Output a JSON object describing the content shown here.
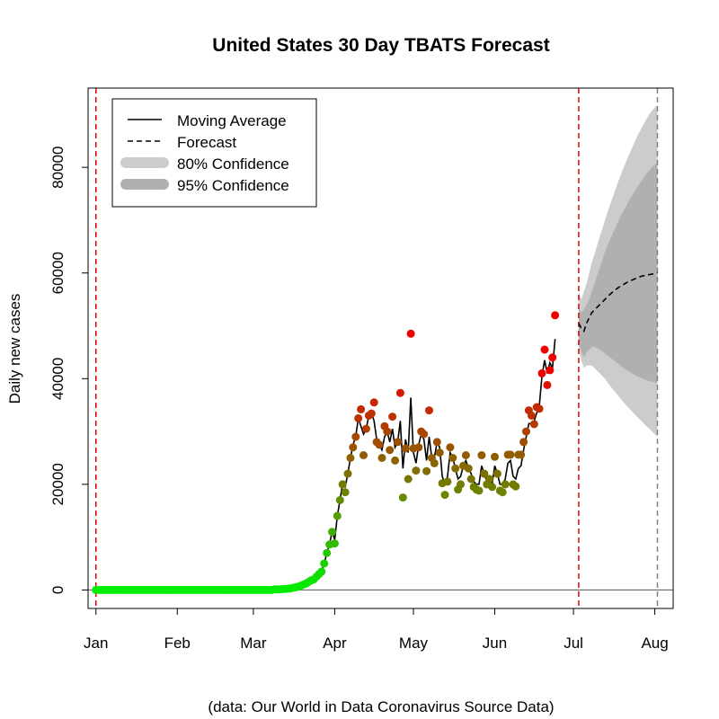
{
  "chart_data": {
    "type": "scatter",
    "title": "United States 30 Day TBATS Forecast",
    "ylabel": "Daily new cases",
    "xlabel": "",
    "caption": "(data: Our World in Data Coronavirus Source Data)",
    "ylim": [
      -3500,
      95000
    ],
    "xlim": [
      "2019-12-29",
      "2020-08-08"
    ],
    "y_ticks": [
      0,
      20000,
      40000,
      60000,
      80000
    ],
    "x_ticks": [
      {
        "date": "2020-01-01",
        "label": "Jan"
      },
      {
        "date": "2020-02-01",
        "label": "Feb"
      },
      {
        "date": "2020-03-01",
        "label": "Mar"
      },
      {
        "date": "2020-04-01",
        "label": "Apr"
      },
      {
        "date": "2020-05-01",
        "label": "May"
      },
      {
        "date": "2020-06-01",
        "label": "Jun"
      },
      {
        "date": "2020-07-01",
        "label": "Jul"
      },
      {
        "date": "2020-08-01",
        "label": "Aug"
      }
    ],
    "legend": {
      "placement": "top-left",
      "entries": [
        {
          "label": "Moving Average",
          "style": "solid-line"
        },
        {
          "label": "Forecast",
          "style": "dashed-line"
        },
        {
          "label": "80% Confidence",
          "style": "band",
          "color": "#cccccc"
        },
        {
          "label": "95% Confidence",
          "style": "band",
          "color": "#b0b0b0"
        }
      ]
    },
    "vertical_lines": [
      {
        "date": "2020-01-01",
        "color": "#e00000",
        "style": "dashed"
      },
      {
        "date": "2020-07-03",
        "color": "#e00000",
        "style": "dashed"
      },
      {
        "date": "2020-08-02",
        "color": "#808080",
        "style": "dashed"
      }
    ],
    "zero_line": true,
    "point_color_scale": [
      "#00ee00",
      "#ee0000"
    ],
    "daily_cases": {
      "start_date": "2020-01-01",
      "values": [
        0,
        0,
        0,
        0,
        0,
        0,
        0,
        0,
        0,
        0,
        0,
        0,
        0,
        0,
        0,
        0,
        0,
        0,
        0,
        0,
        0,
        0,
        0,
        0,
        0,
        0,
        0,
        0,
        0,
        0,
        0,
        0,
        0,
        0,
        0,
        0,
        0,
        0,
        0,
        0,
        0,
        0,
        0,
        0,
        0,
        0,
        0,
        0,
        0,
        0,
        0,
        0,
        0,
        0,
        0,
        0,
        0,
        0,
        0,
        0,
        0,
        0,
        0,
        0,
        0,
        0,
        0,
        0,
        100,
        100,
        100,
        150,
        200,
        250,
        300,
        400,
        500,
        600,
        800,
        1000,
        1200,
        1500,
        1800,
        2000,
        2500,
        3000,
        3500,
        5000,
        7000,
        8600,
        11000,
        8800,
        14000,
        17000,
        20000,
        18500,
        22000,
        25000,
        27000,
        29000,
        32500,
        34200,
        25500,
        30500,
        33000,
        33400,
        35500,
        28000,
        27500,
        25000,
        31000,
        30000,
        26500,
        32800,
        24500,
        28000,
        37300,
        17500,
        26800,
        21000,
        48500,
        26800,
        22600,
        27000,
        30000,
        29500,
        22500,
        34000,
        25000,
        24000,
        28000,
        26000,
        20200,
        18000,
        20500,
        27000,
        25000,
        23000,
        19000,
        20000,
        23500,
        25500,
        23000,
        21000,
        19500,
        19000,
        18800,
        25500,
        22000,
        20000,
        21000,
        19500,
        25200,
        22000,
        18800,
        18500,
        20000,
        25600,
        25600,
        20000,
        19600,
        25600,
        25600,
        28000,
        30000,
        34000,
        33000,
        31400,
        34600,
        34300,
        41000,
        45500,
        38800,
        41600,
        44000,
        52000
      ]
    },
    "moving_average": {
      "start_date": "2020-01-01",
      "values": [
        0,
        0,
        0,
        0,
        0,
        0,
        0,
        0,
        0,
        0,
        0,
        0,
        0,
        0,
        0,
        0,
        0,
        0,
        0,
        0,
        0,
        0,
        0,
        0,
        0,
        0,
        0,
        0,
        0,
        0,
        0,
        0,
        0,
        0,
        0,
        0,
        0,
        0,
        0,
        0,
        0,
        0,
        0,
        0,
        0,
        0,
        0,
        0,
        0,
        0,
        0,
        0,
        0,
        0,
        0,
        0,
        0,
        0,
        0,
        0,
        0,
        0,
        0,
        0,
        0,
        0,
        0,
        0,
        50,
        100,
        100,
        150,
        200,
        250,
        300,
        400,
        500,
        600,
        800,
        1000,
        1200,
        1500,
        1800,
        2000,
        2500,
        3000,
        3500,
        5000,
        7000,
        8600,
        11000,
        9500,
        14000,
        17000,
        20000,
        19500,
        22000,
        25000,
        27500,
        29000,
        32500,
        31000,
        29500,
        30500,
        33000,
        33600,
        32000,
        28500,
        27500,
        26500,
        29000,
        30000,
        28000,
        30500,
        27000,
        28000,
        32000,
        23000,
        28500,
        26000,
        36400,
        26000,
        24000,
        27500,
        29500,
        28500,
        24500,
        29000,
        25000,
        25000,
        28000,
        27000,
        21500,
        20000,
        21500,
        26000,
        25000,
        23000,
        21000,
        21500,
        23500,
        24500,
        23000,
        22000,
        20500,
        20000,
        20000,
        23500,
        22000,
        20500,
        21500,
        20000,
        23500,
        22000,
        20000,
        20000,
        21000,
        24000,
        24500,
        21500,
        21000,
        23000,
        23500,
        26500,
        29000,
        31500,
        31500,
        32000,
        33500,
        35000,
        40500,
        43500,
        41000,
        43000,
        42000,
        47500
      ]
    },
    "forecast": {
      "start_date": "2020-07-03",
      "mean": [
        50500,
        49500,
        49000,
        50500,
        51500,
        52500,
        53000,
        53500,
        54000,
        54500,
        55000,
        55500,
        56000,
        56400,
        56800,
        57200,
        57500,
        57800,
        58100,
        58400,
        58600,
        58800,
        59000,
        59200,
        59400,
        59500,
        59600,
        59700,
        59800,
        59900,
        60000
      ],
      "lower80": [
        47000,
        45000,
        44000,
        45000,
        45500,
        46000,
        46000,
        45800,
        45500,
        45200,
        44800,
        44400,
        44000,
        43600,
        43200,
        42800,
        42400,
        42000,
        41700,
        41400,
        41100,
        40800,
        40500,
        40300,
        40100,
        39900,
        39700,
        39500,
        39400,
        39300,
        39200
      ],
      "upper80": [
        53500,
        52500,
        53000,
        54000,
        55000,
        56500,
        58000,
        59500,
        61000,
        62500,
        64000,
        65200,
        66400,
        67500,
        68600,
        69700,
        70700,
        71700,
        72600,
        73500,
        74400,
        75200,
        76000,
        76800,
        77500,
        78200,
        78900,
        79500,
        80100,
        80500,
        80800
      ],
      "lower95": [
        45500,
        43500,
        42000,
        42500,
        42500,
        42500,
        42000,
        41500,
        41000,
        40500,
        40000,
        39300,
        38600,
        38000,
        37400,
        36800,
        36200,
        35600,
        35000,
        34500,
        34000,
        33400,
        32900,
        32400,
        31900,
        31400,
        30900,
        30500,
        30000,
        29500,
        29000
      ],
      "upper95": [
        56500,
        55000,
        56500,
        58000,
        60000,
        62000,
        63500,
        65200,
        66800,
        68400,
        70000,
        71500,
        73000,
        74400,
        75800,
        77200,
        78500,
        79800,
        81000,
        82200,
        83300,
        84400,
        85500,
        86500,
        87500,
        88400,
        89300,
        90100,
        90800,
        91300,
        91800
      ]
    }
  }
}
